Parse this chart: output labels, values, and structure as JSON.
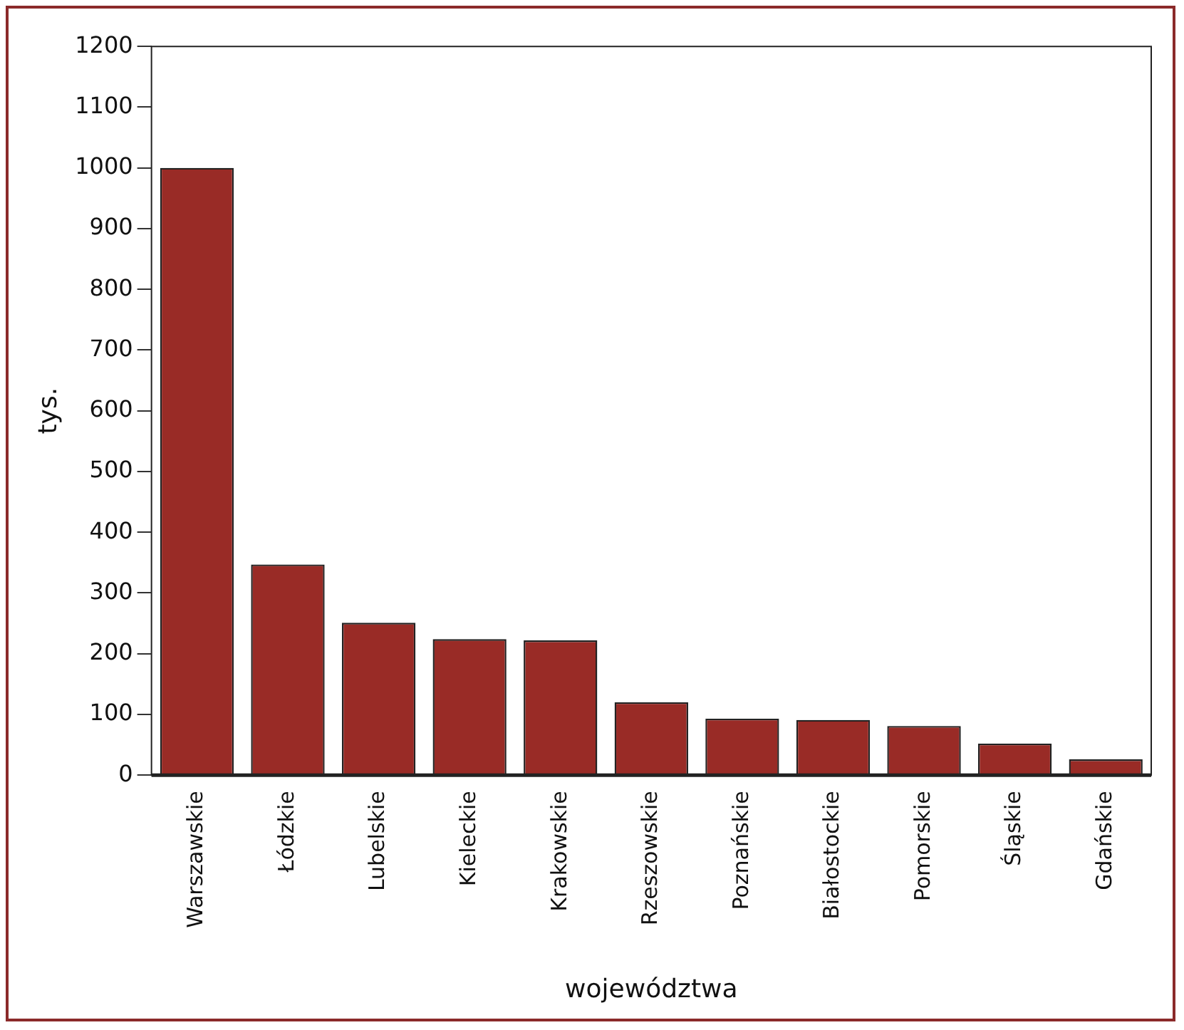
{
  "chart_data": {
    "type": "bar",
    "xlabel": "województwa",
    "ylabel": "tys.",
    "categories": [
      "Warszawskie",
      "Łódzkie",
      "Lubelskie",
      "Kieleckie",
      "Krakowskie",
      "Rzeszowskie",
      "Poznańskie",
      "Białostockie",
      "Pomorskie",
      "Śląskie",
      "Gdańskie"
    ],
    "values": [
      1000,
      347,
      251,
      224,
      222,
      120,
      93,
      91,
      81,
      52,
      26
    ],
    "color": "#992b26",
    "ylim": [
      0,
      1200
    ],
    "yticks": [
      0,
      100,
      200,
      300,
      400,
      500,
      600,
      700,
      800,
      900,
      1000,
      1100,
      1200
    ],
    "grid": false,
    "legend": false
  }
}
